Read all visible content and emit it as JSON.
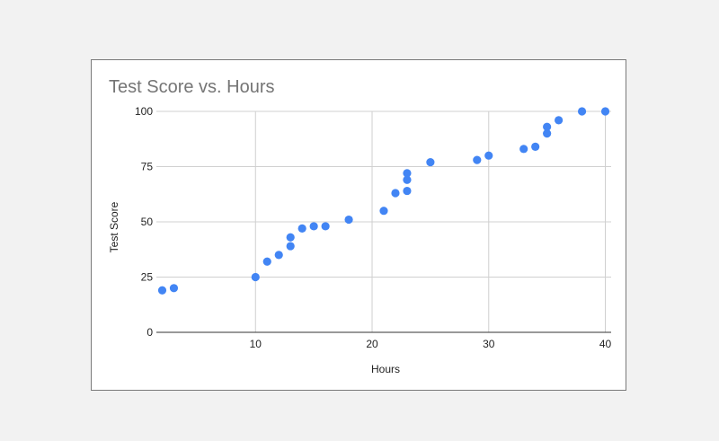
{
  "chart_data": {
    "type": "scatter",
    "title": "Test Score vs. Hours",
    "xlabel": "Hours",
    "ylabel": "Test Score",
    "xlim": [
      1.5,
      40.5
    ],
    "ylim": [
      0,
      100
    ],
    "x_ticks": [
      10,
      20,
      30,
      40
    ],
    "y_ticks": [
      0,
      25,
      50,
      75,
      100
    ],
    "grid": true,
    "legend": "none",
    "point_color": "#4285f4",
    "points": [
      {
        "x": 2,
        "y": 19
      },
      {
        "x": 3,
        "y": 20
      },
      {
        "x": 10,
        "y": 25
      },
      {
        "x": 11,
        "y": 32
      },
      {
        "x": 12,
        "y": 35
      },
      {
        "x": 13,
        "y": 39
      },
      {
        "x": 13,
        "y": 43
      },
      {
        "x": 14,
        "y": 47
      },
      {
        "x": 15,
        "y": 48
      },
      {
        "x": 16,
        "y": 48
      },
      {
        "x": 18,
        "y": 51
      },
      {
        "x": 21,
        "y": 55
      },
      {
        "x": 22,
        "y": 63
      },
      {
        "x": 23,
        "y": 64
      },
      {
        "x": 23,
        "y": 69
      },
      {
        "x": 23,
        "y": 72
      },
      {
        "x": 25,
        "y": 77
      },
      {
        "x": 29,
        "y": 78
      },
      {
        "x": 30,
        "y": 80
      },
      {
        "x": 33,
        "y": 83
      },
      {
        "x": 34,
        "y": 84
      },
      {
        "x": 35,
        "y": 90
      },
      {
        "x": 35,
        "y": 93
      },
      {
        "x": 36,
        "y": 96
      },
      {
        "x": 38,
        "y": 100
      },
      {
        "x": 40,
        "y": 100
      }
    ]
  }
}
